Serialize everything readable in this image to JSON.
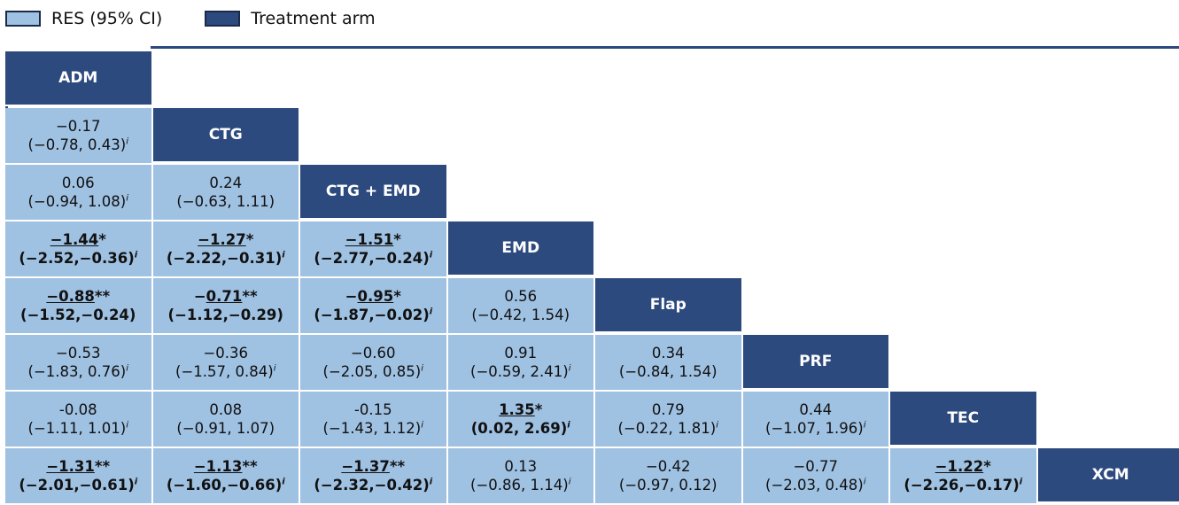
{
  "legend": {
    "items": [
      {
        "label": "RES (95% CI)",
        "color": "#9fc1e2"
      },
      {
        "label": "Treatment arm",
        "color": "#2c4a7e"
      }
    ]
  },
  "colors": {
    "res_fill": "#9fc1e2",
    "arm_fill": "#2c4a7e",
    "line": "#2c4a7e"
  },
  "chart_data": {
    "type": "table",
    "title": "",
    "treatments": [
      "ADM",
      "CTG",
      "CTG + EMD",
      "EMD",
      "Flap",
      "PRF",
      "TEC",
      "XCM"
    ],
    "cells": [
      [],
      [
        {
          "est": "−0.17",
          "ci": "(−0.78, 0.43)",
          "sup": "i",
          "underline": "",
          "stars": "",
          "bold": false
        }
      ],
      [
        {
          "est": "0.06",
          "ci": "(−0.94, 1.08)",
          "sup": "i",
          "underline": "",
          "stars": "",
          "bold": false
        },
        {
          "est": "0.24",
          "ci": "(−0.63, 1.11)",
          "sup": "",
          "underline": "",
          "stars": "",
          "bold": false
        }
      ],
      [
        {
          "est": "",
          "ci": "(−2.52,−0.36)",
          "sup": "i",
          "underline": "−1.44",
          "stars": "*",
          "bold": true
        },
        {
          "est": "",
          "ci": "(−2.22,−0.31)",
          "sup": "i",
          "underline": "−1.27",
          "stars": "*",
          "bold": true
        },
        {
          "est": "",
          "ci": "(−2.77,−0.24)",
          "sup": "i",
          "underline": "−1.51",
          "stars": "*",
          "bold": true
        }
      ],
      [
        {
          "est": "",
          "ci": "(−1.52,−0.24)",
          "sup": "",
          "underline": "−0.88",
          "stars": "**",
          "bold": true
        },
        {
          "est": "−",
          "ci": "(−1.12,−0.29)",
          "sup": "",
          "underline": "0.71",
          "stars": "**",
          "bold": true
        },
        {
          "est": "−",
          "ci": "(−1.87,−0.02)",
          "sup": "i",
          "underline": "0.95",
          "stars": "*",
          "bold": true
        },
        {
          "est": "0.56",
          "ci": "(−0.42, 1.54)",
          "sup": "",
          "underline": "",
          "stars": "",
          "bold": false
        }
      ],
      [
        {
          "est": "−0.53",
          "ci": "(−1.83, 0.76)",
          "sup": "i",
          "underline": "",
          "stars": "",
          "bold": false
        },
        {
          "est": "−0.36",
          "ci": "(−1.57, 0.84)",
          "sup": "i",
          "underline": "",
          "stars": "",
          "bold": false
        },
        {
          "est": "−0.60",
          "ci": "(−2.05, 0.85)",
          "sup": "i",
          "underline": "",
          "stars": "",
          "bold": false
        },
        {
          "est": "0.91",
          "ci": "(−0.59, 2.41)",
          "sup": "i",
          "underline": "",
          "stars": "",
          "bold": false
        },
        {
          "est": "0.34",
          "ci": "(−0.84, 1.54)",
          "sup": "",
          "underline": "",
          "stars": "",
          "bold": false
        }
      ],
      [
        {
          "est": "-0.08",
          "ci": "(−1.11, 1.01)",
          "sup": "i",
          "underline": "",
          "stars": "",
          "bold": false
        },
        {
          "est": "0.08",
          "ci": "(−0.91, 1.07)",
          "sup": "",
          "underline": "",
          "stars": "",
          "bold": false
        },
        {
          "est": "-0.15",
          "ci": "(−1.43, 1.12)",
          "sup": "i",
          "underline": "",
          "stars": "",
          "bold": false
        },
        {
          "est": "",
          "ci": "(0.02, 2.69)",
          "sup": "i",
          "underline": "1.35",
          "stars": "*",
          "bold": true
        },
        {
          "est": "0.79",
          "ci": "(−0.22, 1.81)",
          "sup": "i",
          "underline": "",
          "stars": "",
          "bold": false
        },
        {
          "est": "0.44",
          "ci": "(−1.07, 1.96)",
          "sup": "i",
          "underline": "",
          "stars": "",
          "bold": false
        }
      ],
      [
        {
          "est": "",
          "ci": "(−2.01,−0.61)",
          "sup": "i",
          "underline": "−1.31",
          "stars": "**",
          "bold": true
        },
        {
          "est": "",
          "ci": "(−1.60,−0.66)",
          "sup": "i",
          "underline": "−1.13",
          "stars": "**",
          "bold": true
        },
        {
          "est": "",
          "ci": "(−2.32,−0.42)",
          "sup": "i",
          "underline": "−1.37",
          "stars": "**",
          "bold": true
        },
        {
          "est": "0.13",
          "ci": "(−0.86, 1.14)",
          "sup": "i",
          "underline": "",
          "stars": "",
          "bold": false
        },
        {
          "est": "−0.42",
          "ci": "(−0.97, 0.12)",
          "sup": "",
          "underline": "",
          "stars": "",
          "bold": false
        },
        {
          "est": "−0.77",
          "ci": "(−2.03, 0.48)",
          "sup": "i",
          "underline": "",
          "stars": "",
          "bold": false
        },
        {
          "est": "",
          "ci": "(−2.26,−0.17)",
          "sup": "i",
          "underline": "−1.22",
          "stars": "*",
          "bold": true
        }
      ]
    ]
  }
}
